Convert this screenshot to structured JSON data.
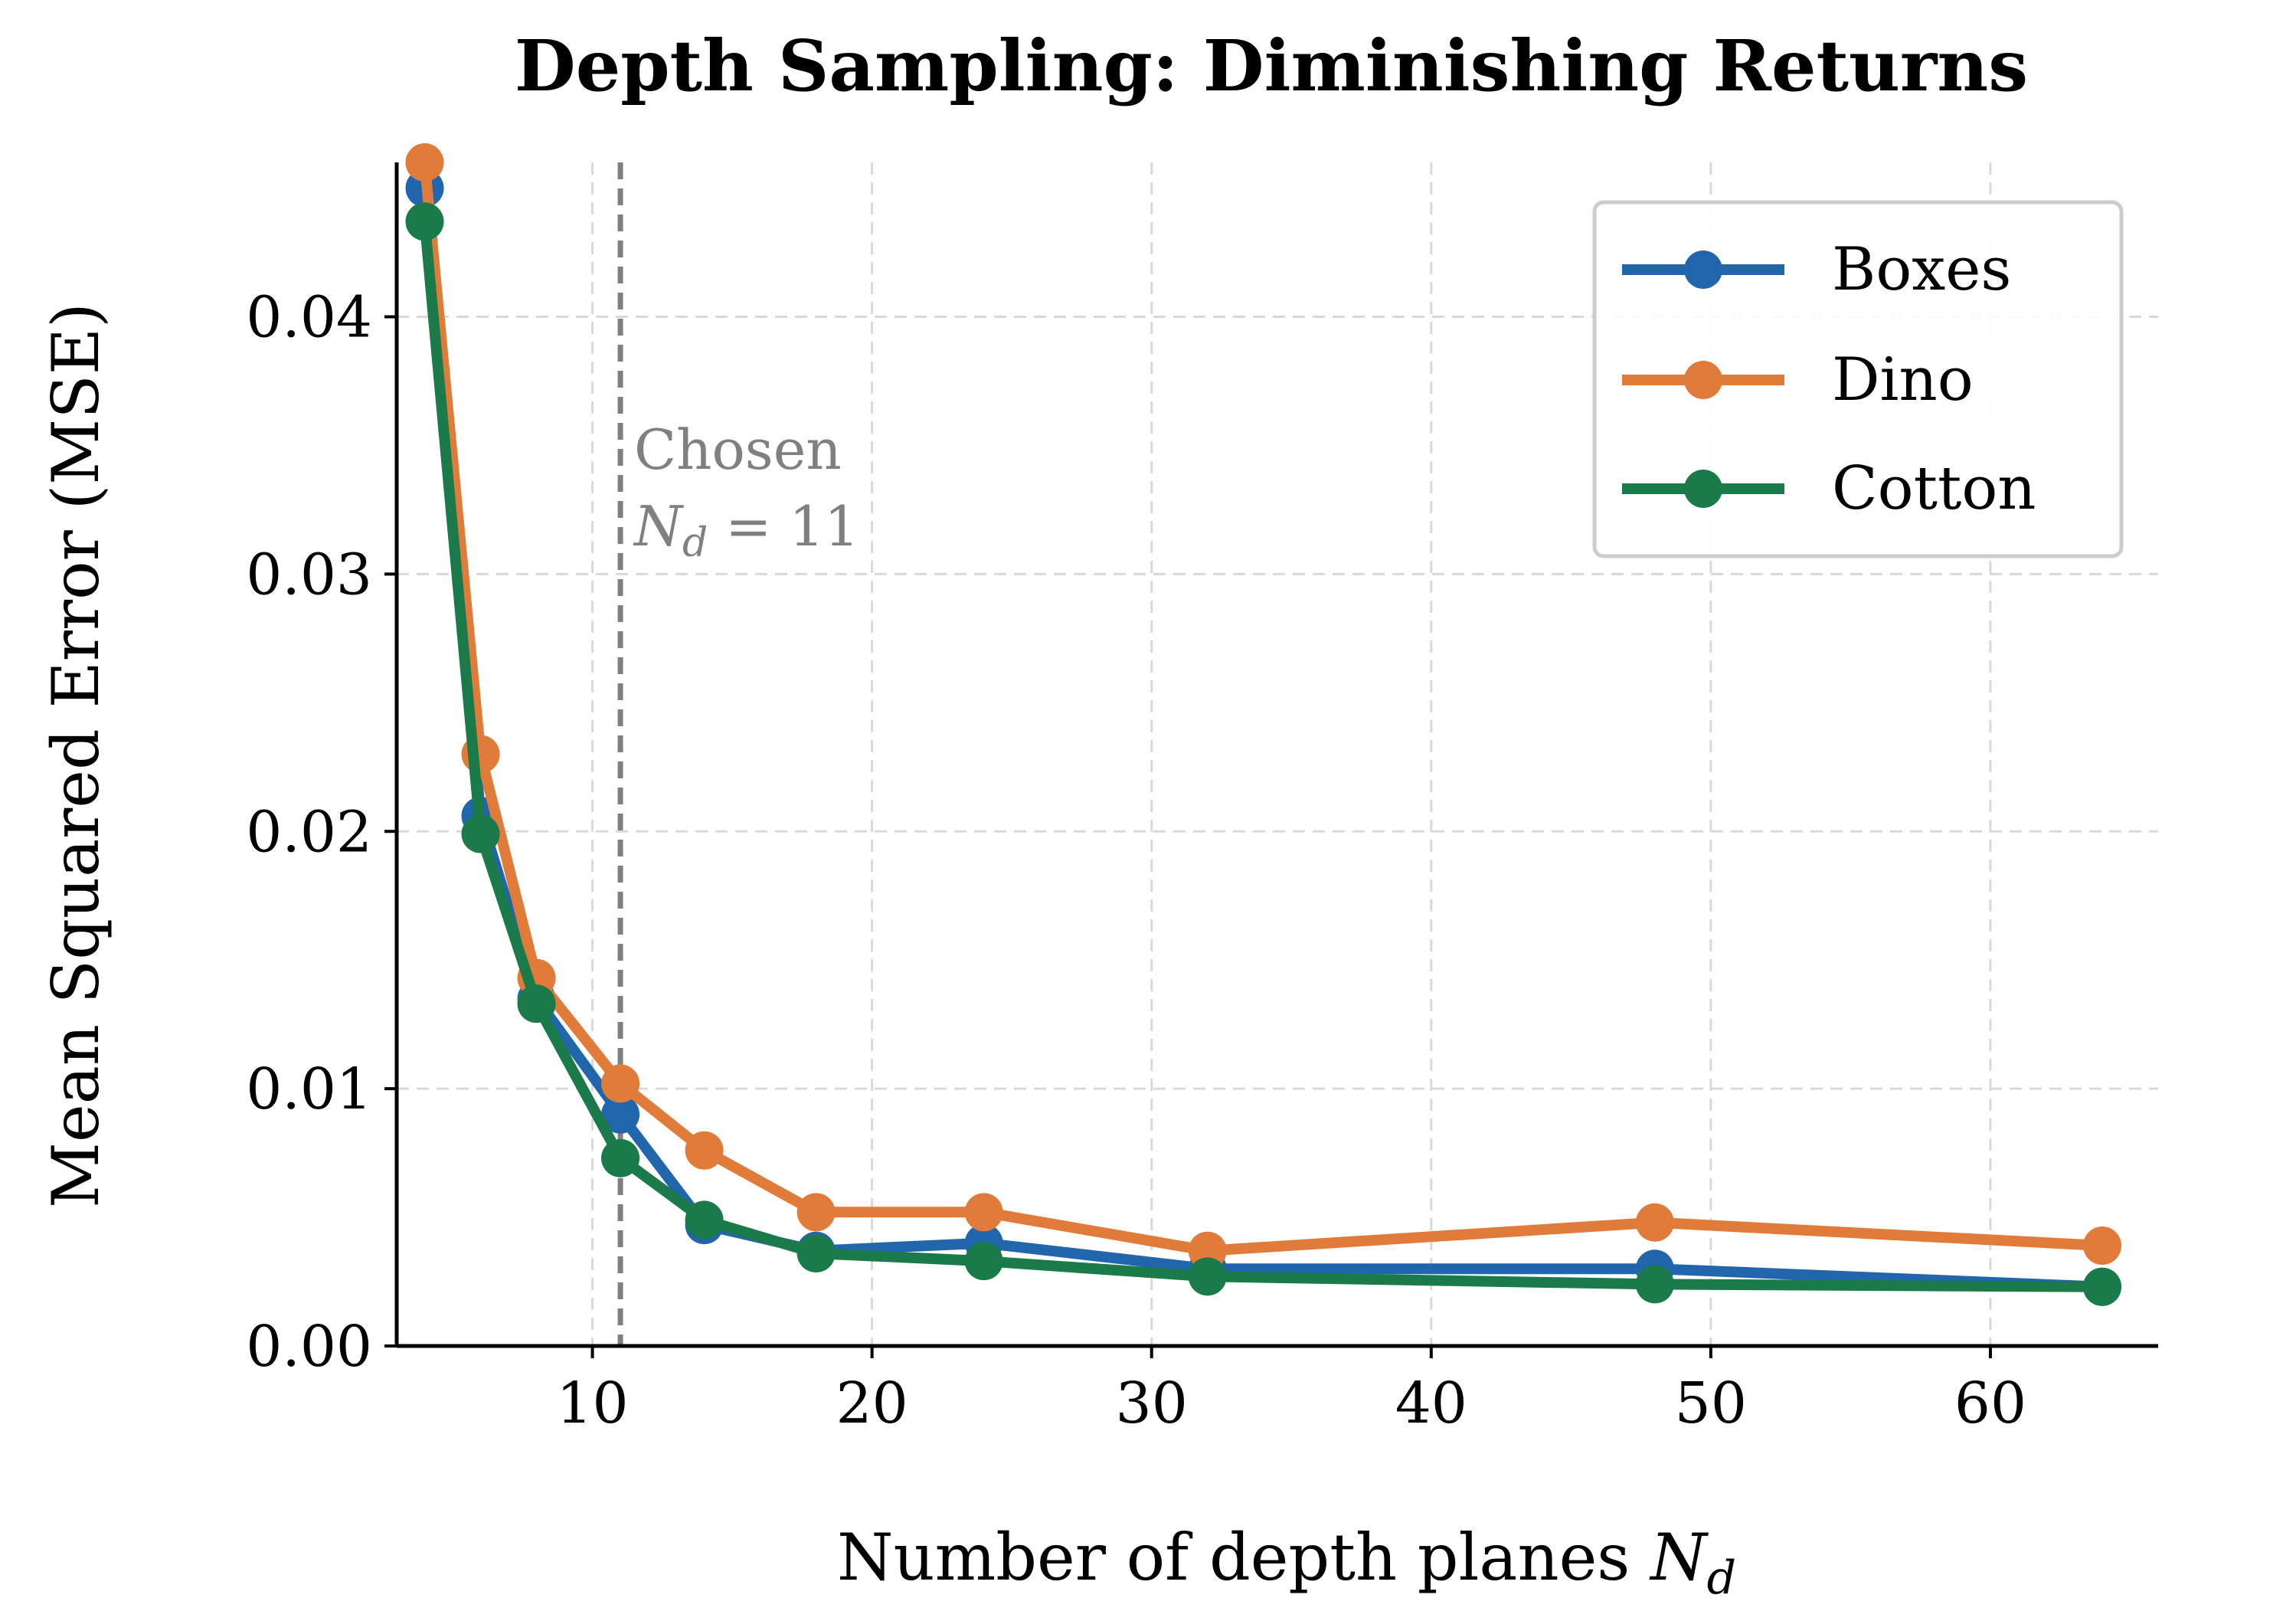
{
  "chart_data": {
    "type": "line",
    "title": "Depth Sampling: Diminishing Returns",
    "xlabel": "Number of depth planes",
    "xlabel_symbol": "N",
    "xlabel_subscript": "d",
    "ylabel": "Mean Squared Error (MSE)",
    "xlim": [
      3,
      66
    ],
    "ylim": [
      0,
      0.046
    ],
    "xticks": [
      10,
      20,
      30,
      40,
      50,
      60
    ],
    "xtick_labels": [
      "10",
      "20",
      "30",
      "40",
      "50",
      "60"
    ],
    "yticks": [
      0,
      0.01,
      0.02,
      0.03,
      0.04
    ],
    "ytick_labels": [
      "0.00",
      "0.01",
      "0.02",
      "0.03",
      "0.04"
    ],
    "grid": true,
    "legend_position": "upper right",
    "x": [
      4,
      6,
      8,
      11,
      14,
      18,
      24,
      32,
      48,
      64
    ],
    "series": [
      {
        "name": "Boxes",
        "color": "#2166ac",
        "values": [
          0.045,
          0.0206,
          0.0135,
          0.009,
          0.0047,
          0.0037,
          0.004,
          0.003,
          0.003,
          0.0023
        ]
      },
      {
        "name": "Dino",
        "color": "#e07b39",
        "values": [
          0.046,
          0.023,
          0.0143,
          0.0102,
          0.0076,
          0.0052,
          0.0052,
          0.0037,
          0.0048,
          0.0039
        ]
      },
      {
        "name": "Cotton",
        "color": "#1b7a4a",
        "values": [
          0.0437,
          0.0199,
          0.0133,
          0.0073,
          0.0049,
          0.0036,
          0.0033,
          0.0027,
          0.0024,
          0.0023
        ]
      }
    ],
    "vline": {
      "x": 11,
      "color": "#808080",
      "label_line1": "Chosen",
      "label_symbol": "N",
      "label_subscript": "d",
      "label_equals": " = 11"
    }
  }
}
